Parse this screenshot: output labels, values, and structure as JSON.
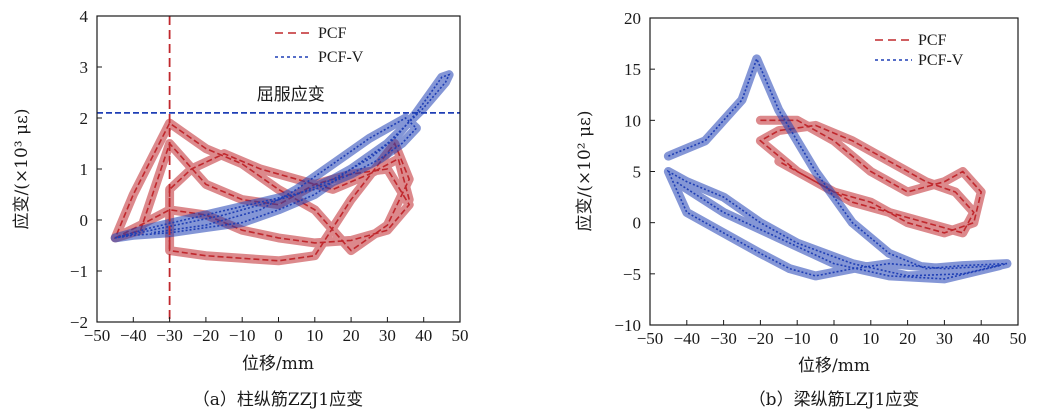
{
  "chart_data": [
    {
      "type": "line",
      "caption": "（a）柱纵筋ZZJ1应变",
      "xlabel": "位移/mm",
      "ylabel": "应变/(×10³ με)",
      "xlim": [
        -50,
        50
      ],
      "ylim": [
        -2,
        4
      ],
      "xticks": [
        -50,
        -40,
        -30,
        -20,
        -10,
        0,
        10,
        20,
        30,
        40,
        50
      ],
      "yticks": [
        -2,
        -1,
        0,
        1,
        2,
        3,
        4
      ],
      "xtick_labels": [
        "−50",
        "−40",
        "−30",
        "−20",
        "−10",
        "0",
        "10",
        "20",
        "30",
        "40",
        "50"
      ],
      "ytick_labels": [
        "−2",
        "−1",
        "0",
        "1",
        "2",
        "3",
        "4"
      ],
      "legend_position": "top-right",
      "annotation": {
        "text": "屈服应变",
        "x": -6,
        "y": 2.35
      },
      "reference_lines": [
        {
          "orientation": "vertical",
          "x": -30,
          "color": "#c0282d",
          "style": "dashed"
        },
        {
          "orientation": "horizontal",
          "y": 2.1,
          "color": "#1f3fb5",
          "style": "dashed"
        }
      ],
      "series": [
        {
          "name": "PCF",
          "color": "#c0282d",
          "style": "dashed",
          "x": [
            -45,
            -38,
            -30,
            -20,
            -10,
            0,
            10,
            20,
            30,
            36,
            30,
            20,
            10,
            0,
            -10,
            -20,
            -30,
            -38,
            -45,
            -40,
            -30,
            -20,
            -10,
            0,
            10,
            20,
            30,
            36,
            32,
            20,
            10,
            0,
            -10,
            -20,
            -30,
            -30,
            -24,
            -15,
            -5,
            5,
            15,
            25,
            33,
            36
          ],
          "y": [
            -0.35,
            -0.1,
            0.2,
            0.1,
            -0.2,
            -0.35,
            -0.45,
            -0.4,
            -0.2,
            0.3,
            1.0,
            0.9,
            0.7,
            0.3,
            0.4,
            0.7,
            1.5,
            -0.2,
            -0.35,
            0.5,
            1.9,
            1.4,
            1.1,
            0.6,
            0.2,
            -0.6,
            -0.1,
            0.8,
            1.5,
            0.4,
            -0.7,
            -0.8,
            -0.75,
            -0.7,
            -0.6,
            0.6,
            1.0,
            1.3,
            1.0,
            0.8,
            0.6,
            0.9,
            1.2,
            0.4
          ]
        },
        {
          "name": "PCF-V",
          "color": "#1f3fb5",
          "style": "dotted",
          "x": [
            -45,
            -35,
            -25,
            -15,
            -5,
            5,
            15,
            25,
            32,
            38,
            42,
            45,
            47,
            46,
            40,
            30,
            20,
            10,
            0,
            -10,
            -20,
            -30,
            -40,
            -45,
            -35,
            -20,
            -5,
            10,
            20,
            28,
            34,
            38,
            35,
            25,
            15,
            5,
            -5,
            -20,
            -35
          ],
          "y": [
            -0.35,
            -0.2,
            -0.05,
            0.1,
            0.3,
            0.5,
            0.8,
            1.2,
            1.6,
            2.1,
            2.5,
            2.8,
            2.85,
            2.7,
            2.2,
            1.5,
            1.0,
            0.5,
            0.2,
            -0.05,
            -0.15,
            -0.25,
            -0.3,
            -0.35,
            -0.15,
            0.1,
            0.35,
            0.6,
            0.9,
            1.2,
            1.5,
            1.8,
            2.0,
            1.6,
            1.1,
            0.6,
            0.2,
            -0.1,
            -0.25
          ]
        }
      ]
    },
    {
      "type": "line",
      "caption": "（b）梁纵筋LZJ1应变",
      "xlabel": "位移/mm",
      "ylabel": "应变/(×10² με)",
      "xlim": [
        -50,
        50
      ],
      "ylim": [
        -10,
        20
      ],
      "xticks": [
        -50,
        -40,
        -30,
        -20,
        -10,
        0,
        10,
        20,
        30,
        40,
        50
      ],
      "yticks": [
        -10,
        -5,
        0,
        5,
        10,
        15,
        20
      ],
      "xtick_labels": [
        "−50",
        "−40",
        "−30",
        "−20",
        "−10",
        "0",
        "10",
        "20",
        "30",
        "40",
        "50"
      ],
      "ytick_labels": [
        "−10",
        "−5",
        "0",
        "5",
        "10",
        "15",
        "20"
      ],
      "legend_position": "top-right",
      "series": [
        {
          "name": "PCF",
          "color": "#c0282d",
          "style": "dashed",
          "x": [
            -20,
            -10,
            0,
            10,
            20,
            30,
            35,
            40,
            38,
            30,
            20,
            10,
            0,
            -10,
            -20,
            -15,
            -5,
            5,
            15,
            25,
            33,
            38,
            35,
            25,
            15,
            5,
            -5,
            -15
          ],
          "y": [
            10,
            10,
            8,
            5,
            3,
            4,
            5,
            3,
            0,
            -1,
            0,
            2,
            3,
            5,
            8,
            9,
            9.5,
            8,
            6,
            4,
            3,
            1,
            -1,
            0,
            1,
            2,
            4,
            6
          ]
        },
        {
          "name": "PCF-V",
          "color": "#1f3fb5",
          "style": "dotted",
          "x": [
            -45,
            -35,
            -25,
            -21,
            -15,
            -5,
            5,
            15,
            25,
            35,
            47,
            35,
            20,
            5,
            -10,
            -20,
            -30,
            -40,
            -45,
            -40,
            -30,
            -20,
            -12,
            -5,
            5,
            15,
            30,
            45,
            30,
            15,
            0,
            -15,
            -30,
            -43
          ],
          "y": [
            6.5,
            8,
            12,
            16,
            11,
            5,
            0,
            -3,
            -4.5,
            -4.2,
            -4,
            -5,
            -5.2,
            -4,
            -2,
            0,
            2.5,
            4,
            5,
            1,
            -1,
            -3,
            -4.5,
            -5.2,
            -4.5,
            -4,
            -4.5,
            -4.2,
            -5.5,
            -5.2,
            -4,
            -1.5,
            1,
            4
          ]
        }
      ]
    }
  ]
}
